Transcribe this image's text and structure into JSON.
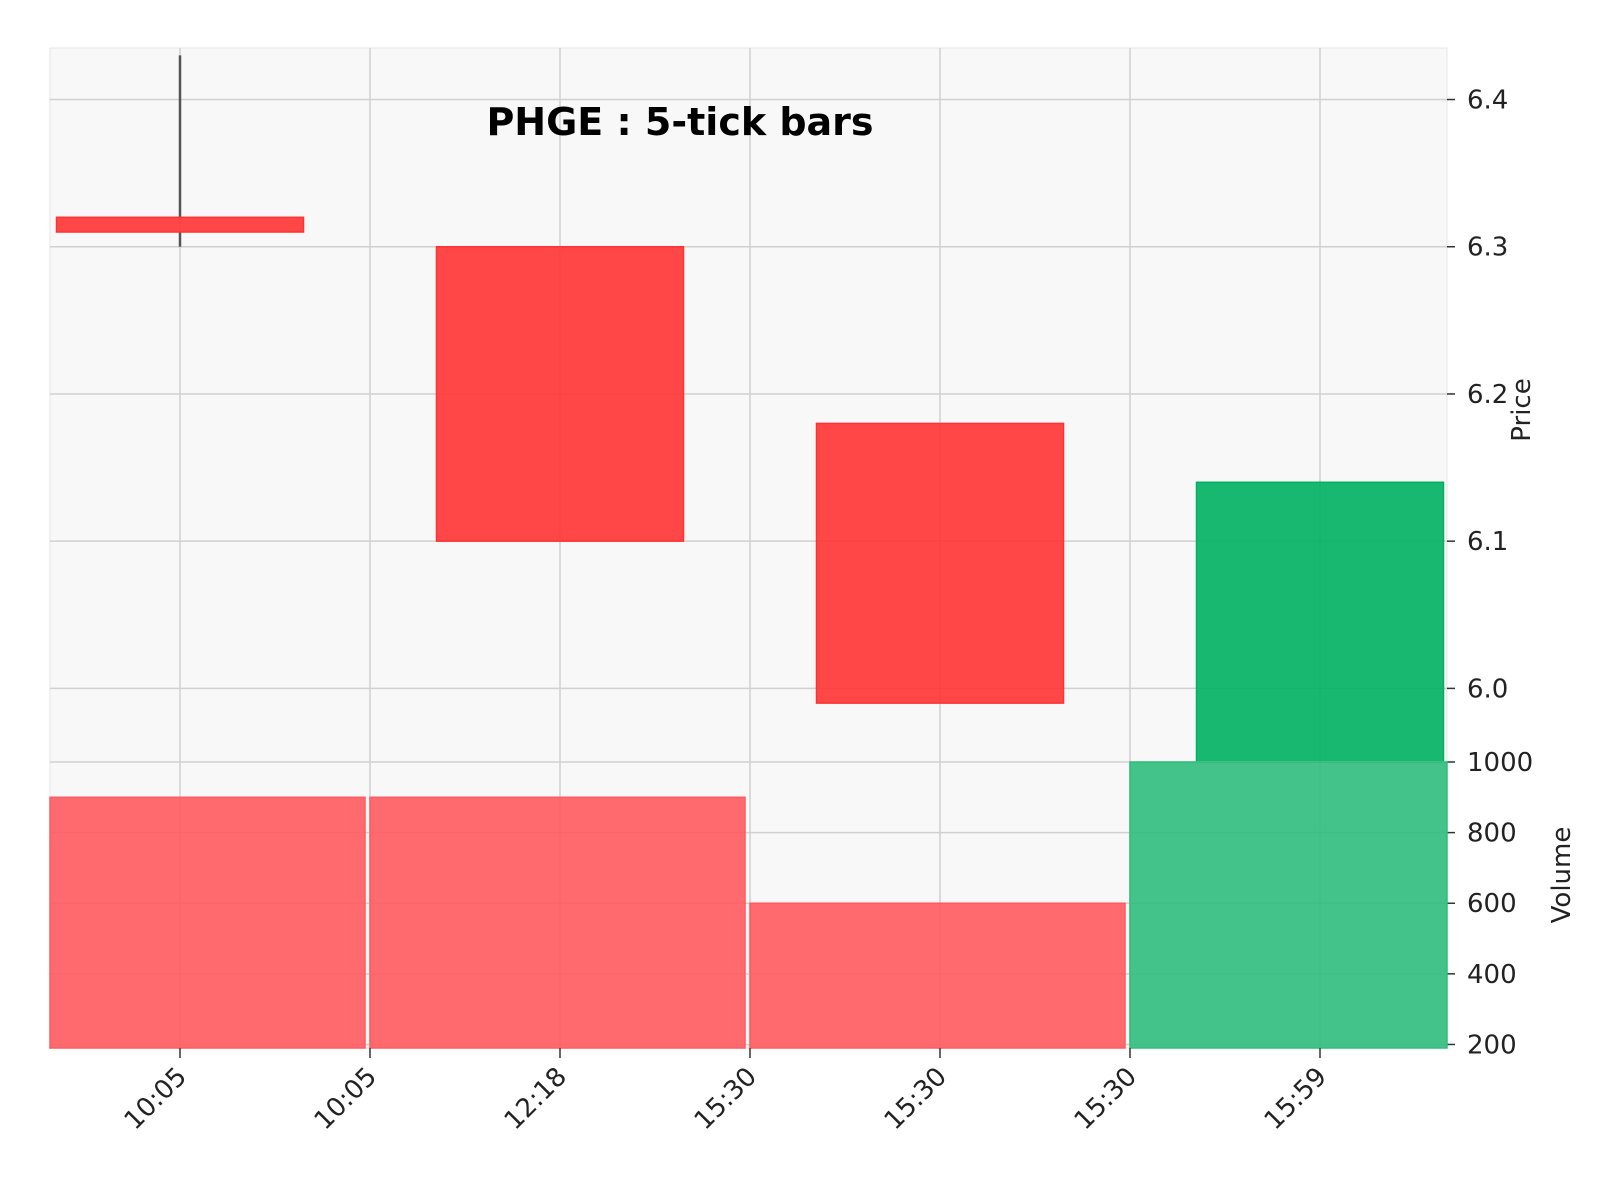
{
  "chart_data": {
    "type": "candlestick",
    "title": "PHGE : 5-tick bars",
    "x_tick_labels": [
      "10:05",
      "10:05",
      "12:18",
      "15:30",
      "15:30",
      "15:30",
      "15:59"
    ],
    "price_axis": {
      "label": "Price",
      "ticks": [
        6.0,
        6.1,
        6.2,
        6.3,
        6.4
      ],
      "range": [
        5.95,
        6.435
      ]
    },
    "volume_axis": {
      "label": "Volume",
      "ticks": [
        200,
        400,
        600,
        800,
        1000
      ],
      "range": [
        190,
        1000
      ]
    },
    "bricks": [
      {
        "open": 6.32,
        "close": 6.31,
        "high": 6.43,
        "low": 6.3,
        "direction": "down"
      },
      {
        "open": 6.3,
        "close": 6.1,
        "high": 6.3,
        "low": 6.1,
        "direction": "down"
      },
      {
        "open": 6.18,
        "close": 5.99,
        "high": 6.18,
        "low": 5.99,
        "direction": "down"
      },
      {
        "open": 5.95,
        "close": 6.14,
        "high": 6.14,
        "low": 5.95,
        "direction": "up"
      }
    ],
    "volumes": [
      {
        "value": 900,
        "direction": "down"
      },
      {
        "value": 900,
        "direction": "down"
      },
      {
        "value": 600,
        "direction": "down"
      },
      {
        "value": 1000,
        "direction": "up"
      }
    ],
    "grid": true,
    "colors": {
      "down": "#ff3333",
      "up": "#00b060",
      "down_volume": "#ff5a5f",
      "up_volume": "#2fbd7c",
      "wick": "#555555",
      "panel_bg": "#f8f8f8",
      "grid": "#d0d0d0"
    }
  }
}
